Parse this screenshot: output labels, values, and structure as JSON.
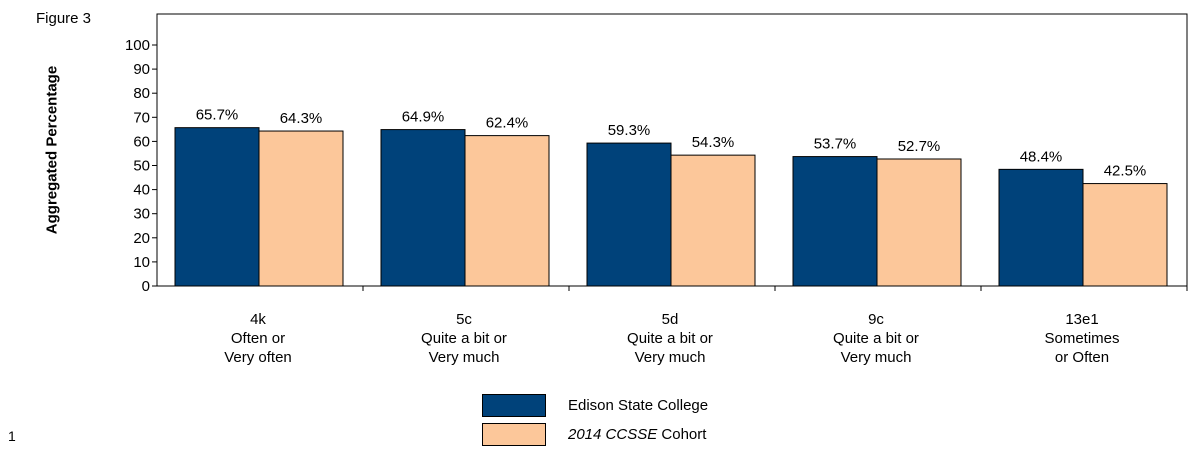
{
  "figure_label": "Figure 3",
  "page_number": "1",
  "colors": {
    "edison": "#00427a",
    "cohort": "#fcc79a",
    "axis": "#000000"
  },
  "chart_data": {
    "type": "bar",
    "ylabel": "Aggregated Percentage",
    "ylim": [
      0,
      100
    ],
    "yticks": [
      0,
      10,
      20,
      30,
      40,
      50,
      60,
      70,
      80,
      90,
      100
    ],
    "categories": [
      [
        "4k",
        "Often or",
        "Very often"
      ],
      [
        "5c",
        "Quite a bit or",
        "Very much"
      ],
      [
        "5d",
        "Quite a bit or",
        "Very much"
      ],
      [
        "9c",
        "Quite a bit or",
        "Very much"
      ],
      [
        "13e1",
        "Sometimes",
        "or Often"
      ]
    ],
    "series": [
      {
        "name": "Edison State College",
        "values": [
          65.7,
          64.9,
          59.3,
          53.7,
          48.4
        ],
        "labels": [
          "65.7%",
          "64.9%",
          "59.3%",
          "53.7%",
          "48.4%"
        ],
        "color": "#00427a"
      },
      {
        "name_italic": "2014 CCSSE",
        "name_rest": "Cohort",
        "values": [
          64.3,
          62.4,
          54.3,
          52.7,
          42.5
        ],
        "labels": [
          "64.3%",
          "62.4%",
          "54.3%",
          "52.7%",
          "42.5%"
        ],
        "color": "#fcc79a"
      }
    ],
    "legend_position": "bottom-center",
    "grid": false
  }
}
